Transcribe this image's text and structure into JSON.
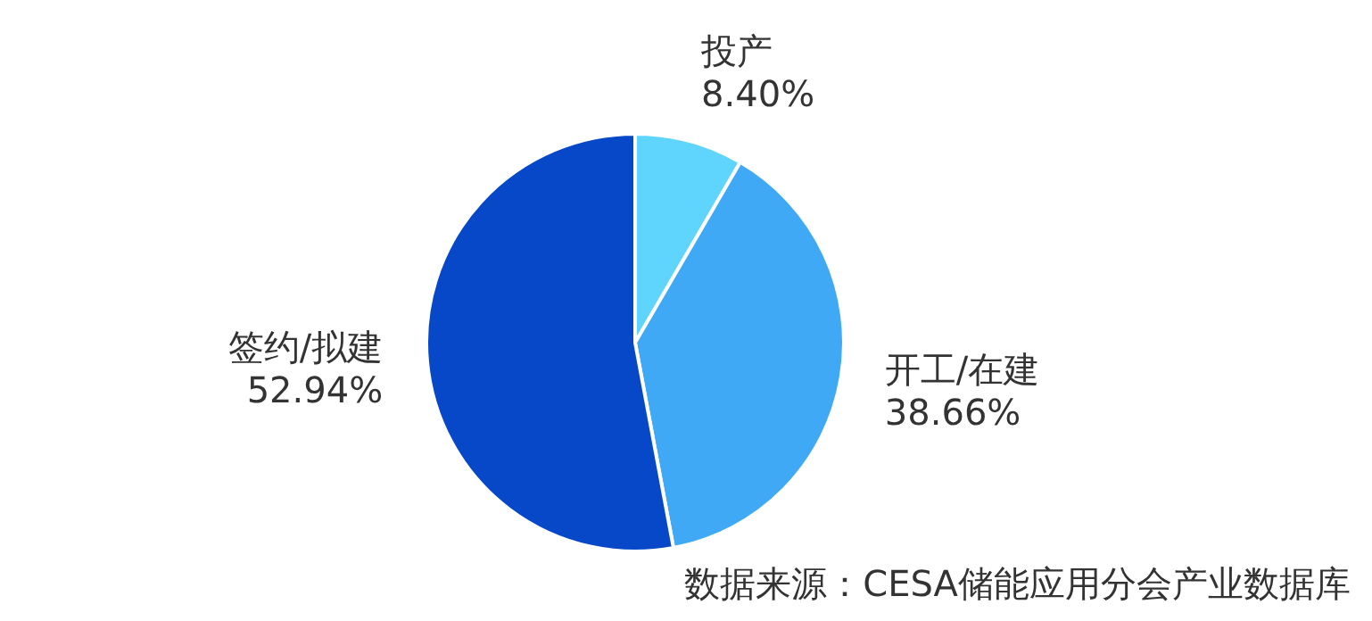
{
  "chart_data": {
    "type": "pie",
    "categories": [
      "投产",
      "开工/在建",
      "签约/拟建"
    ],
    "values": [
      8.4,
      38.66,
      52.94
    ],
    "colors": [
      "#5fd4fd",
      "#3fa9f5",
      "#0648c7"
    ],
    "value_labels": [
      "8.40%",
      "38.66%",
      "52.94%"
    ],
    "annotations": [
      "数据来源：CESA储能应用分会产业数据库"
    ]
  }
}
